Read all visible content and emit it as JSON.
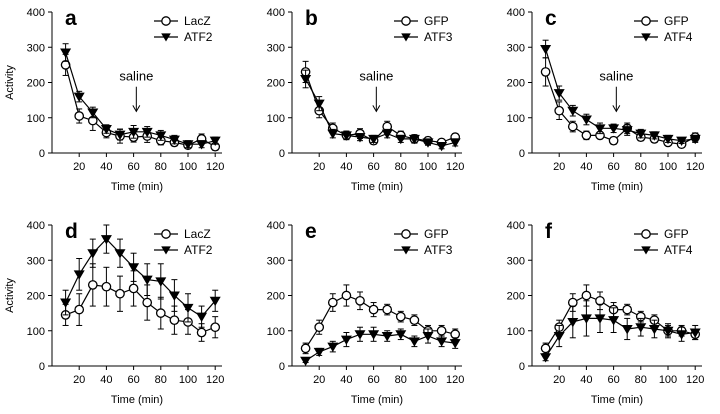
{
  "chart_data": [
    {
      "type": "line",
      "panel_label": "a",
      "ylabel": "Activity",
      "xlabel": "Time (min)",
      "xlim": [
        0,
        125
      ],
      "ylim": [
        0,
        400
      ],
      "xticks": [
        20,
        40,
        60,
        80,
        100,
        120
      ],
      "yticks": [
        0,
        100,
        200,
        300,
        400
      ],
      "x": [
        10,
        20,
        30,
        40,
        50,
        60,
        70,
        80,
        90,
        100,
        110,
        120
      ],
      "series": [
        {
          "name": "LacZ",
          "marker": "circle-open",
          "values": [
            250,
            105,
            92,
            58,
            48,
            45,
            48,
            35,
            30,
            22,
            40,
            18
          ],
          "errors": [
            30,
            20,
            28,
            15,
            20,
            14,
            18,
            12,
            10,
            8,
            14,
            10
          ]
        },
        {
          "name": "ATF2",
          "marker": "triangle-down-filled",
          "values": [
            285,
            160,
            115,
            68,
            52,
            60,
            60,
            50,
            38,
            25,
            25,
            35
          ],
          "errors": [
            25,
            15,
            15,
            12,
            15,
            18,
            15,
            14,
            12,
            10,
            10,
            10
          ]
        }
      ],
      "annotation": {
        "text": "saline",
        "x": 62
      }
    },
    {
      "type": "line",
      "panel_label": "b",
      "ylabel": "",
      "xlabel": "Time (min)",
      "xlim": [
        0,
        125
      ],
      "ylim": [
        0,
        400
      ],
      "xticks": [
        20,
        40,
        60,
        80,
        100,
        120
      ],
      "yticks": [
        0,
        100,
        200,
        300,
        400
      ],
      "x": [
        10,
        20,
        30,
        40,
        50,
        60,
        70,
        80,
        90,
        100,
        110,
        120
      ],
      "series": [
        {
          "name": "GFP",
          "marker": "circle-open",
          "values": [
            230,
            120,
            70,
            50,
            55,
            35,
            75,
            50,
            40,
            35,
            30,
            45
          ],
          "errors": [
            30,
            20,
            15,
            12,
            14,
            10,
            15,
            12,
            10,
            10,
            8,
            10
          ]
        },
        {
          "name": "ATF3",
          "marker": "triangle-down-filled",
          "values": [
            210,
            140,
            55,
            50,
            45,
            40,
            55,
            40,
            40,
            30,
            20,
            30
          ],
          "errors": [
            25,
            20,
            12,
            12,
            10,
            10,
            12,
            10,
            12,
            8,
            8,
            10
          ]
        }
      ],
      "annotation": {
        "text": "saline",
        "x": 62
      }
    },
    {
      "type": "line",
      "panel_label": "c",
      "ylabel": "",
      "xlabel": "Time (min)",
      "xlim": [
        0,
        125
      ],
      "ylim": [
        0,
        400
      ],
      "xticks": [
        20,
        40,
        60,
        80,
        100,
        120
      ],
      "yticks": [
        0,
        100,
        200,
        300,
        400
      ],
      "x": [
        10,
        20,
        30,
        40,
        50,
        60,
        70,
        80,
        90,
        100,
        110,
        120
      ],
      "series": [
        {
          "name": "GFP",
          "marker": "circle-open",
          "values": [
            230,
            120,
            75,
            50,
            50,
            35,
            70,
            45,
            40,
            30,
            25,
            45
          ],
          "errors": [
            40,
            25,
            15,
            12,
            10,
            10,
            15,
            10,
            10,
            8,
            8,
            12
          ]
        },
        {
          "name": "ATF4",
          "marker": "triangle-down-filled",
          "values": [
            295,
            170,
            120,
            95,
            70,
            70,
            65,
            55,
            50,
            40,
            35,
            40
          ],
          "errors": [
            25,
            20,
            15,
            15,
            15,
            12,
            15,
            12,
            10,
            10,
            8,
            10
          ]
        }
      ],
      "annotation": {
        "text": "saline",
        "x": 62
      }
    },
    {
      "type": "line",
      "panel_label": "d",
      "ylabel": "Activity",
      "xlabel": "Time (min)",
      "xlim": [
        0,
        125
      ],
      "ylim": [
        0,
        400
      ],
      "xticks": [
        20,
        40,
        60,
        80,
        100,
        120
      ],
      "yticks": [
        0,
        100,
        200,
        300,
        400
      ],
      "x": [
        10,
        20,
        30,
        40,
        50,
        60,
        70,
        80,
        90,
        100,
        110,
        120
      ],
      "series": [
        {
          "name": "LacZ",
          "marker": "circle-open",
          "values": [
            145,
            160,
            230,
            225,
            205,
            220,
            180,
            150,
            130,
            125,
            95,
            110
          ],
          "errors": [
            30,
            45,
            60,
            55,
            50,
            50,
            50,
            45,
            40,
            35,
            25,
            30
          ]
        },
        {
          "name": "ATF2",
          "marker": "triangle-down-filled",
          "values": [
            180,
            260,
            320,
            360,
            320,
            280,
            245,
            240,
            200,
            165,
            140,
            185
          ],
          "errors": [
            35,
            45,
            40,
            40,
            40,
            40,
            45,
            50,
            45,
            40,
            30,
            30
          ]
        }
      ]
    },
    {
      "type": "line",
      "panel_label": "e",
      "ylabel": "",
      "xlabel": "Time (min)",
      "xlim": [
        0,
        125
      ],
      "ylim": [
        0,
        400
      ],
      "xticks": [
        20,
        40,
        60,
        80,
        100,
        120
      ],
      "yticks": [
        0,
        100,
        200,
        300,
        400
      ],
      "x": [
        10,
        20,
        30,
        40,
        50,
        60,
        70,
        80,
        90,
        100,
        110,
        120
      ],
      "series": [
        {
          "name": "GFP",
          "marker": "circle-open",
          "values": [
            50,
            110,
            180,
            200,
            185,
            160,
            160,
            140,
            130,
            100,
            100,
            90
          ],
          "errors": [
            15,
            20,
            25,
            30,
            25,
            20,
            15,
            15,
            15,
            15,
            15,
            15
          ]
        },
        {
          "name": "ATF3",
          "marker": "triangle-down-filled",
          "values": [
            15,
            40,
            55,
            75,
            90,
            90,
            85,
            90,
            70,
            85,
            70,
            65
          ],
          "errors": [
            5,
            10,
            15,
            20,
            20,
            20,
            15,
            15,
            15,
            20,
            15,
            15
          ]
        }
      ]
    },
    {
      "type": "line",
      "panel_label": "f",
      "ylabel": "",
      "xlabel": "Time (min)",
      "xlim": [
        0,
        125
      ],
      "ylim": [
        0,
        400
      ],
      "xticks": [
        20,
        40,
        60,
        80,
        100,
        120
      ],
      "yticks": [
        0,
        100,
        200,
        300,
        400
      ],
      "x": [
        10,
        20,
        30,
        40,
        50,
        60,
        70,
        80,
        90,
        100,
        110,
        120
      ],
      "series": [
        {
          "name": "GFP",
          "marker": "circle-open",
          "values": [
            50,
            110,
            180,
            200,
            185,
            160,
            160,
            140,
            130,
            100,
            100,
            90
          ],
          "errors": [
            15,
            20,
            25,
            30,
            25,
            20,
            15,
            15,
            15,
            15,
            15,
            15
          ]
        },
        {
          "name": "ATF4",
          "marker": "triangle-down-filled",
          "values": [
            25,
            85,
            125,
            135,
            135,
            130,
            105,
            110,
            105,
            100,
            90,
            95
          ],
          "errors": [
            10,
            30,
            45,
            50,
            40,
            35,
            30,
            25,
            25,
            20,
            20,
            20
          ]
        }
      ]
    }
  ]
}
